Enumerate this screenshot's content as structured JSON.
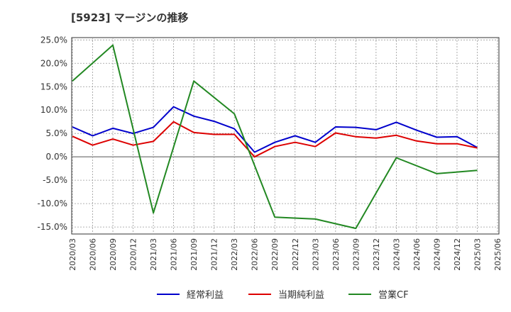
{
  "chart_data": {
    "type": "line",
    "title": "[5923]  マージンの推移",
    "xlabel": "",
    "ylabel": "",
    "ylim": [
      -16.5,
      25.5
    ],
    "y_ticks": [
      25.0,
      20.0,
      15.0,
      10.0,
      5.0,
      0.0,
      -5.0,
      -10.0,
      -15.0
    ],
    "y_tick_labels": [
      "25.0%",
      "20.0%",
      "15.0%",
      "10.0%",
      "5.0%",
      "0.0%",
      "-5.0%",
      "-10.0%",
      "-15.0%"
    ],
    "x_tick_labels": [
      "2020/03",
      "2020/06",
      "2020/09",
      "2020/12",
      "2021/03",
      "2021/06",
      "2021/09",
      "2021/12",
      "2022/03",
      "2022/06",
      "2022/09",
      "2022/12",
      "2023/03",
      "2023/06",
      "2023/09",
      "2023/12",
      "2024/03",
      "2024/06",
      "2024/09",
      "2024/12",
      "2025/03",
      "2025/06"
    ],
    "grid": true,
    "legend_position": "bottom",
    "series": [
      {
        "name": "経常利益",
        "color": "#0000cc",
        "values": [
          6.4,
          4.5,
          6.1,
          5.0,
          6.3,
          10.7,
          8.7,
          7.6,
          6.0,
          1.0,
          3.1,
          4.5,
          3.1,
          6.4,
          6.3,
          5.8,
          7.4,
          5.7,
          4.2,
          4.3,
          2.0,
          null
        ]
      },
      {
        "name": "当期純利益",
        "color": "#dd0000",
        "values": [
          4.4,
          2.5,
          3.8,
          2.5,
          3.3,
          7.5,
          5.2,
          4.8,
          4.8,
          0.0,
          2.2,
          3.1,
          2.2,
          5.1,
          4.3,
          4.0,
          4.6,
          3.4,
          2.8,
          2.8,
          1.9,
          null
        ]
      },
      {
        "name": "営業CF",
        "color": "#228822",
        "values": [
          16.2,
          null,
          23.9,
          null,
          -12.0,
          null,
          16.2,
          null,
          9.2,
          null,
          -12.9,
          null,
          -13.3,
          null,
          -15.3,
          null,
          -0.2,
          null,
          -3.6,
          null,
          -2.9,
          null
        ]
      }
    ]
  }
}
